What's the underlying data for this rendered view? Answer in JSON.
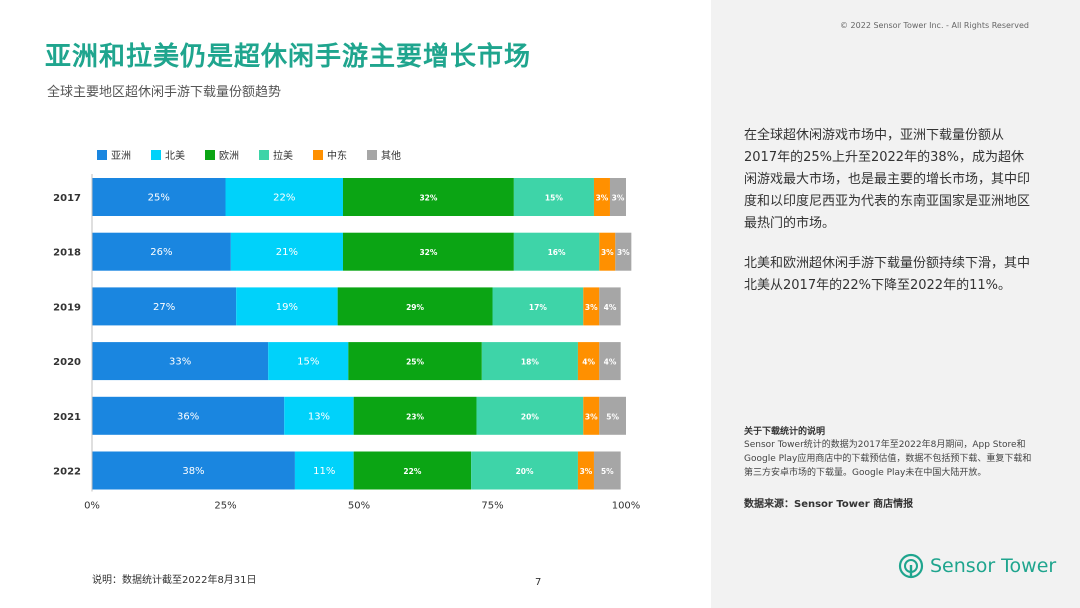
{
  "header": {
    "copyright": "© 2022 Sensor Tower Inc. - All Rights Reserved",
    "title": "亚洲和拉美仍是超休闲手游主要增长市场",
    "subtitle": "全球主要地区超休闲手游下载量份额趋势"
  },
  "right_panel": {
    "paragraph1": "在全球超休闲游戏市场中，亚洲下载量份额从2017年的25%上升至2022年的38%，成为超休闲游戏最大市场，也是最主要的增长市场，其中印度和以印度尼西亚为代表的东南亚国家是亚洲地区最热门的市场。",
    "paragraph2": "北美和欧洲超休闲手游下载量份额持续下滑，其中北美从2017年的22%下降至2022年的11%。",
    "note_title": "关于下载统计的说明",
    "note_body": "Sensor Tower统计的数据为2017年至2022年8月期间，App Store和Google Play应用商店中的下载预估值，数据不包括预下载、重复下载和第三方安卓市场的下载量。Google Play未在中国大陆开放。",
    "source": "数据来源：Sensor Tower 商店情报"
  },
  "footer": {
    "footnote": "说明：数据统计截至2022年8月31日",
    "page_number": "7",
    "brand": "Sensor Tower"
  },
  "colors": {
    "accent": "#1fa58e",
    "asia": "#1a86e0",
    "north_america": "#00d2fa",
    "europe": "#0ba514",
    "latam": "#3ed4a8",
    "middle_east": "#ff9000",
    "other": "#a6a6a6"
  },
  "chart_data": {
    "type": "bar",
    "orientation": "horizontal",
    "stacked": true,
    "categories": [
      "2017",
      "2018",
      "2019",
      "2020",
      "2021",
      "2022"
    ],
    "series": [
      {
        "name": "亚洲",
        "color": "#1a86e0",
        "values": [
          25,
          26,
          27,
          33,
          36,
          38
        ]
      },
      {
        "name": "北美",
        "color": "#00d2fa",
        "values": [
          22,
          21,
          19,
          15,
          13,
          11
        ]
      },
      {
        "name": "欧洲",
        "color": "#0ba514",
        "values": [
          32,
          32,
          29,
          25,
          23,
          22
        ]
      },
      {
        "name": "拉美",
        "color": "#3ed4a8",
        "values": [
          15,
          16,
          17,
          18,
          20,
          20
        ]
      },
      {
        "name": "中东",
        "color": "#ff9000",
        "values": [
          3,
          3,
          3,
          4,
          3,
          3
        ]
      },
      {
        "name": "其他",
        "color": "#a6a6a6",
        "values": [
          3,
          3,
          4,
          4,
          5,
          5
        ]
      }
    ],
    "xticks": [
      "0%",
      "25%",
      "50%",
      "75%",
      "100%"
    ],
    "xlim": [
      0,
      100
    ],
    "legend": "top-left",
    "grid": false
  }
}
